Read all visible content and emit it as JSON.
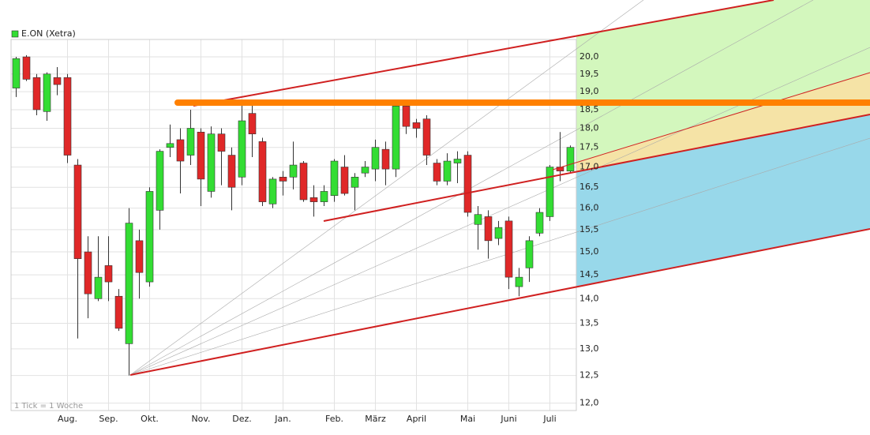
{
  "chart_data": {
    "type": "candlestick",
    "series": [
      {
        "name": "E.ON (Xetra)",
        "color": "#33dd33",
        "up_color": "#33dd33",
        "down_color": "#e02828",
        "open": [
          19.1,
          20.0,
          19.4,
          18.45,
          19.4,
          19.4,
          17.05,
          15.0,
          14.0,
          14.7,
          14.05,
          13.1,
          15.25,
          14.35,
          15.95,
          17.5,
          17.7,
          17.3,
          17.9,
          16.4,
          17.85,
          17.3,
          16.75,
          18.4,
          17.65,
          16.1,
          16.75,
          16.75,
          17.1,
          16.25,
          16.15,
          16.3,
          17.0,
          16.5,
          16.85,
          16.95,
          17.45,
          16.95,
          18.6,
          18.15,
          18.25,
          17.1,
          16.65,
          17.1,
          17.3,
          15.62,
          15.8,
          15.3,
          15.7,
          14.25,
          14.65,
          15.42,
          15.8,
          17.0,
          16.9
        ],
        "high": [
          20.0,
          20.05,
          19.5,
          19.55,
          19.7,
          19.5,
          17.2,
          15.35,
          15.35,
          15.35,
          14.2,
          16.0,
          15.5,
          16.5,
          17.45,
          18.1,
          18.0,
          18.5,
          18.0,
          18.05,
          18.0,
          17.5,
          18.7,
          18.7,
          17.75,
          16.75,
          16.9,
          17.65,
          17.15,
          16.55,
          16.55,
          17.2,
          17.3,
          16.85,
          17.15,
          17.7,
          17.65,
          18.7,
          18.7,
          18.25,
          18.35,
          17.2,
          17.35,
          17.4,
          17.4,
          16.05,
          15.95,
          15.7,
          15.8,
          14.65,
          15.35,
          16.0,
          17.05,
          17.9,
          17.55
        ],
        "low": [
          18.85,
          19.3,
          18.35,
          18.2,
          18.9,
          17.1,
          13.2,
          13.6,
          13.95,
          13.95,
          13.35,
          12.5,
          14.0,
          14.25,
          15.5,
          17.25,
          16.35,
          17.05,
          16.05,
          16.25,
          16.55,
          15.95,
          16.55,
          17.25,
          16.05,
          16.0,
          16.3,
          16.45,
          16.15,
          15.8,
          16.05,
          16.15,
          16.3,
          15.95,
          16.75,
          16.65,
          16.55,
          16.75,
          17.85,
          17.75,
          17.05,
          16.55,
          16.55,
          16.6,
          15.8,
          15.05,
          14.85,
          15.15,
          14.2,
          14.05,
          14.35,
          15.35,
          15.7,
          16.65,
          16.85
        ],
        "close": [
          19.95,
          19.35,
          18.5,
          19.5,
          19.2,
          17.3,
          14.85,
          14.1,
          14.45,
          14.35,
          13.4,
          15.65,
          14.55,
          16.4,
          17.4,
          17.6,
          17.15,
          18.0,
          16.7,
          17.85,
          17.4,
          16.5,
          18.2,
          17.85,
          16.15,
          16.7,
          16.65,
          17.05,
          16.2,
          16.15,
          16.4,
          17.15,
          16.35,
          16.75,
          17.0,
          17.5,
          16.95,
          18.6,
          18.05,
          18.0,
          17.3,
          16.65,
          17.15,
          17.2,
          15.9,
          15.85,
          15.25,
          15.55,
          14.45,
          14.45,
          15.25,
          15.9,
          17.0,
          16.9,
          17.5
        ]
      }
    ],
    "categories": [
      null,
      null,
      null,
      null,
      null,
      "Aug.",
      null,
      null,
      null,
      "Sep.",
      null,
      null,
      null,
      "Okt.",
      null,
      null,
      null,
      null,
      "Nov.",
      null,
      null,
      null,
      "Dez.",
      null,
      null,
      null,
      "Jan.",
      null,
      null,
      null,
      null,
      "Feb.",
      null,
      null,
      null,
      "März",
      null,
      null,
      null,
      "April",
      null,
      null,
      null,
      null,
      "Mai",
      null,
      null,
      null,
      "Juni",
      null,
      null,
      null,
      "Juli",
      null,
      null
    ],
    "ylim": [
      11.87,
      20.52
    ],
    "log_scale": true,
    "grid": true,
    "yticks": [
      {
        "value": 12.0,
        "label": "12,0"
      },
      {
        "value": 12.5,
        "label": "12,5"
      },
      {
        "value": 13.0,
        "label": "13,0"
      },
      {
        "value": 13.5,
        "label": "13,5"
      },
      {
        "value": 14.0,
        "label": "14,0"
      },
      {
        "value": 14.5,
        "label": "14,5"
      },
      {
        "value": 15.0,
        "label": "15,0"
      },
      {
        "value": 15.5,
        "label": "15,5"
      },
      {
        "value": 16.0,
        "label": "16,0"
      },
      {
        "value": 16.5,
        "label": "16,5"
      },
      {
        "value": 17.0,
        "label": "17,0"
      },
      {
        "value": 17.5,
        "label": "17,5"
      },
      {
        "value": 18.0,
        "label": "18,0"
      },
      {
        "value": 18.5,
        "label": "18,5"
      },
      {
        "value": 19.0,
        "label": "19,0"
      },
      {
        "value": 19.5,
        "label": "19,5"
      },
      {
        "value": 20.0,
        "label": "20,0"
      }
    ],
    "footnote": "1 Tick = 1 Woche"
  }
}
